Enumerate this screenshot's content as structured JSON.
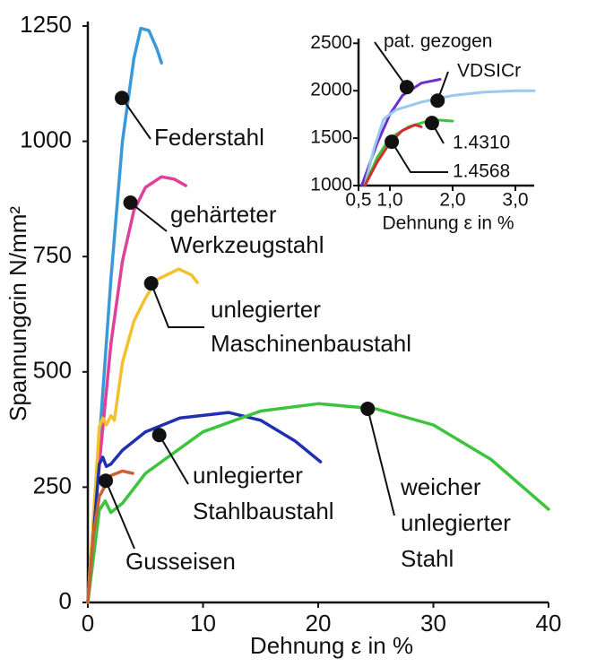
{
  "chart_data": [
    {
      "type": "line",
      "x_label": "Dehnung ε in %",
      "y_label": "Spannungσin N/mm²",
      "xlim": [
        0,
        40
      ],
      "ylim": [
        0,
        1250
      ],
      "xticks": [
        0,
        10,
        20,
        30,
        40
      ],
      "yticks": [
        0,
        250,
        500,
        750,
        1000,
        1250
      ],
      "series": [
        {
          "name": [
            "Federstahl"
          ],
          "color": "#3a9ad9",
          "x": [
            0,
            1,
            2,
            3,
            4,
            4.6,
            5.3,
            6.0,
            6.4
          ],
          "y": [
            0,
            350,
            700,
            1000,
            1180,
            1245,
            1240,
            1200,
            1170
          ],
          "marker": [
            2.96,
            1094
          ]
        },
        {
          "name": [
            "gehärteter",
            "Werkzeugstahl"
          ],
          "color": "#e0409a",
          "x": [
            0,
            1,
            2,
            3,
            4,
            5,
            6.4,
            7.5,
            8.5
          ],
          "y": [
            0,
            300,
            560,
            740,
            850,
            900,
            923,
            918,
            904
          ],
          "marker": [
            3.7,
            867
          ]
        },
        {
          "name": [
            "unlegierter",
            "Maschinenbaustahl"
          ],
          "color": "#f2c12e",
          "x": [
            0,
            1,
            1.3,
            1.6,
            2,
            2.3,
            3,
            4,
            5,
            6,
            7.9,
            9.0,
            9.5
          ],
          "y": [
            0,
            380,
            400,
            385,
            405,
            395,
            520,
            610,
            660,
            700,
            723,
            710,
            694
          ],
          "marker": [
            5.5,
            692
          ]
        },
        {
          "name": [
            "unlegierter",
            "Stahlbaustahl"
          ],
          "color": "#2030b0",
          "x": [
            0,
            1,
            1.3,
            1.6,
            2,
            3,
            5,
            8,
            12.2,
            15,
            18,
            20.2
          ],
          "y": [
            0,
            300,
            315,
            295,
            300,
            330,
            370,
            400,
            412,
            395,
            350,
            305
          ],
          "marker": [
            6.2,
            363
          ]
        },
        {
          "name": [
            "weicher",
            "unlegierter",
            "Stahl"
          ],
          "color": "#3cc43c",
          "x": [
            0,
            1,
            1.5,
            2,
            3,
            5,
            10,
            15,
            20,
            25,
            30,
            35,
            40
          ],
          "y": [
            0,
            200,
            220,
            195,
            215,
            280,
            370,
            415,
            431,
            420,
            385,
            310,
            202
          ],
          "marker": [
            24.3,
            420
          ]
        },
        {
          "name": [
            "Gusseisen"
          ],
          "color": "#c8603a",
          "x": [
            0,
            0.5,
            1,
            2,
            3,
            3.9
          ],
          "y": [
            0,
            150,
            230,
            275,
            285,
            280
          ],
          "marker": [
            1.56,
            264
          ]
        }
      ]
    },
    {
      "type": "line",
      "x_label": "Dehnung ε in %",
      "xlim": [
        0.5,
        3.3
      ],
      "ylim": [
        1000,
        2550
      ],
      "xticks": [
        {
          "value": 0.5,
          "label": "0,5"
        },
        {
          "value": 1.0,
          "label": "1,0"
        },
        {
          "value": 2.0,
          "label": "2,0"
        },
        {
          "value": 3.0,
          "label": "3,0"
        }
      ],
      "yticks": [
        1000,
        1500,
        2000,
        2500
      ],
      "series": [
        {
          "name": [
            "pat.  gezogen"
          ],
          "color": "#6a2fcf",
          "x": [
            0.55,
            0.8,
            1.0,
            1.2,
            1.5,
            1.8
          ],
          "y": [
            1000,
            1450,
            1750,
            1950,
            2080,
            2120
          ],
          "marker": [
            1.27,
            2038
          ]
        },
        {
          "name": [
            "VDSICr"
          ],
          "color": "#9ac8ee",
          "x": [
            0.6,
            0.75,
            0.9,
            1.1,
            1.5,
            2.0,
            2.5,
            3.0,
            3.3
          ],
          "y": [
            1000,
            1400,
            1700,
            1800,
            1880,
            1950,
            1985,
            2000,
            2000
          ],
          "marker": [
            1.76,
            1896
          ]
        },
        {
          "name": [
            "1.4310"
          ],
          "color": "#3cc43c",
          "x": [
            0.6,
            0.8,
            1.0,
            1.3,
            1.6,
            1.8,
            2.0
          ],
          "y": [
            1000,
            1300,
            1500,
            1620,
            1680,
            1690,
            1680
          ],
          "marker": [
            1.67,
            1660
          ]
        },
        {
          "name": [
            "1.4568"
          ],
          "color": "#d03030",
          "x": [
            0.6,
            0.8,
            1.0,
            1.2,
            1.4,
            1.5
          ],
          "y": [
            1000,
            1250,
            1450,
            1580,
            1640,
            1620
          ],
          "marker": [
            1.03,
            1462
          ]
        }
      ]
    }
  ]
}
